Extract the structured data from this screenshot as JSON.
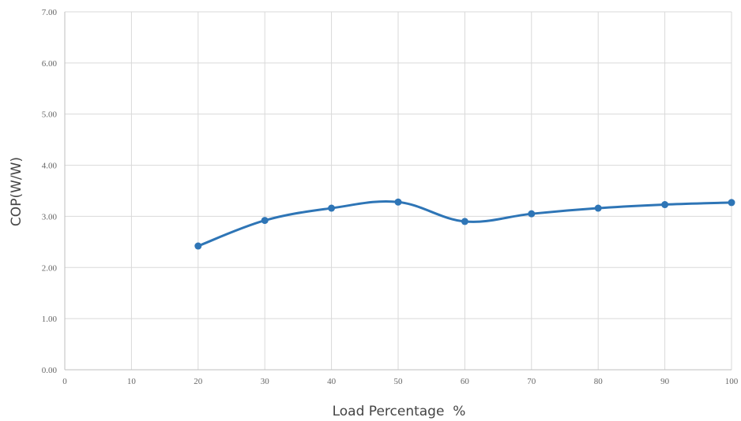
{
  "chart_data": {
    "type": "line",
    "title": "",
    "xlabel": "Load Percentage  %",
    "ylabel": "COP(W/W)",
    "xlim": [
      0,
      100
    ],
    "ylim": [
      0,
      7
    ],
    "x_ticks": [
      "0",
      "10",
      "20",
      "30",
      "40",
      "50",
      "60",
      "70",
      "80",
      "90",
      "100"
    ],
    "y_ticks": [
      "0.00",
      "1.00",
      "2.00",
      "3.00",
      "4.00",
      "5.00",
      "6.00",
      "7.00"
    ],
    "grid": true,
    "legend": "none",
    "series": [
      {
        "x": [
          20,
          30,
          40,
          50,
          60,
          70,
          80,
          90,
          100
        ],
        "values": [
          2.42,
          2.92,
          3.16,
          3.28,
          2.9,
          3.05,
          3.16,
          3.23,
          3.27
        ],
        "color": "#2e75b6"
      }
    ]
  }
}
